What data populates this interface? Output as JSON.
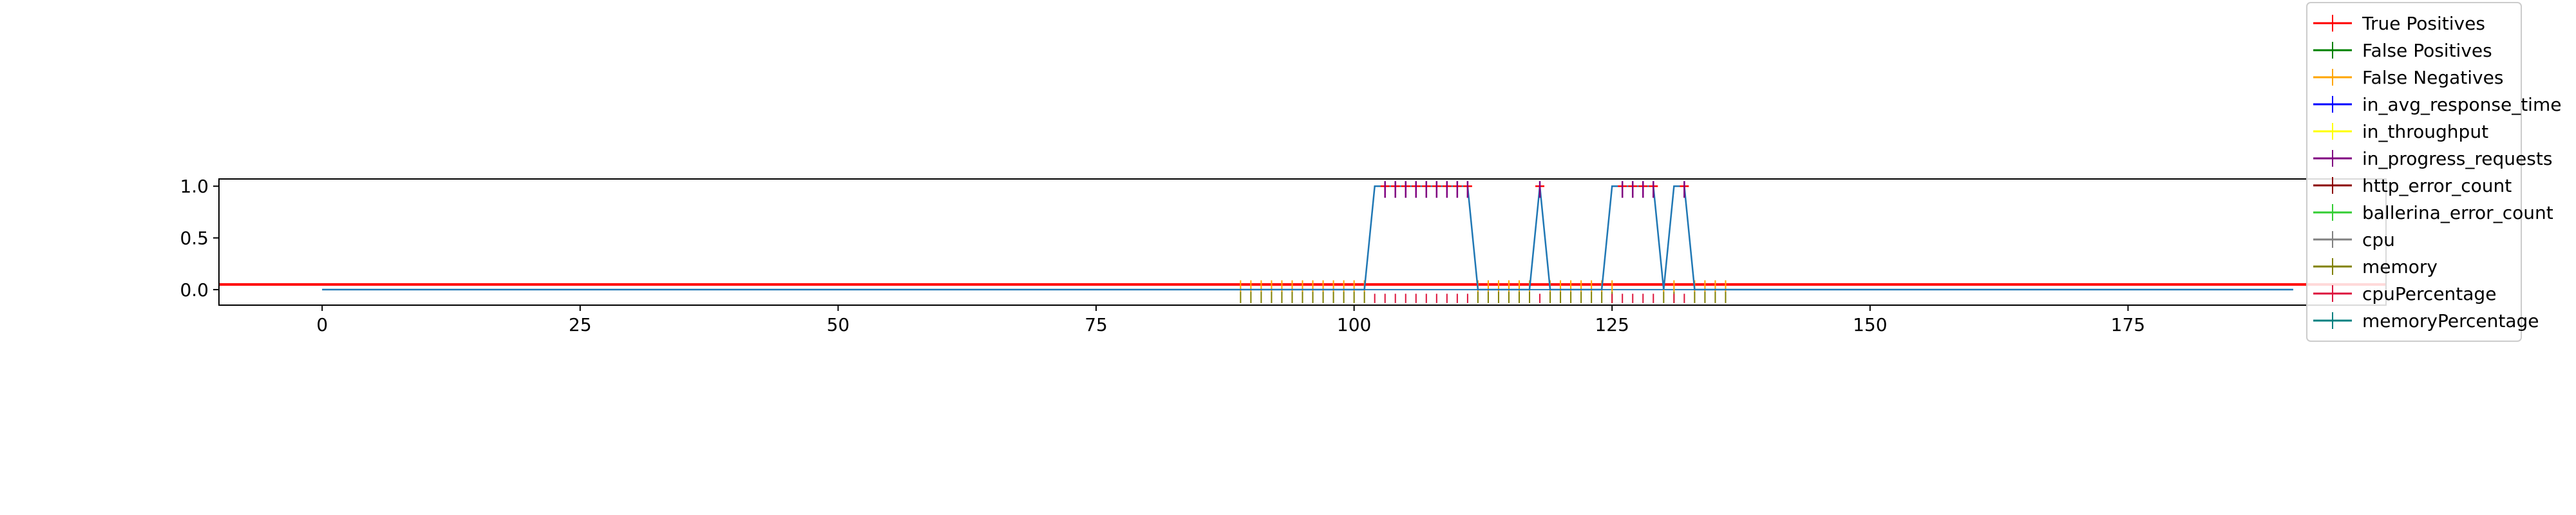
{
  "chart_data": {
    "type": "line",
    "title": "",
    "xlabel": "",
    "ylabel": "",
    "xlim": [
      -10,
      200
    ],
    "ylim": [
      -0.15,
      1.07
    ],
    "xticks": [
      0,
      25,
      50,
      75,
      100,
      125,
      150,
      175
    ],
    "yticks": [
      0.0,
      0.5,
      1.0
    ],
    "xtick_labels": [
      "0",
      "25",
      "50",
      "75",
      "100",
      "125",
      "150",
      "175"
    ],
    "ytick_labels": [
      "0.0",
      "0.5",
      "1.0"
    ],
    "grid": false,
    "legend_placement": "top-right, outside",
    "legend": [
      {
        "label": "True Positives",
        "color": "#ff0000"
      },
      {
        "label": "False Positives",
        "color": "#008000"
      },
      {
        "label": "False Negatives",
        "color": "#ffa500"
      },
      {
        "label": "in_avg_response_time",
        "color": "#0000ff"
      },
      {
        "label": "in_throughput",
        "color": "#ffff00"
      },
      {
        "label": "in_progress_requests",
        "color": "#800080"
      },
      {
        "label": "http_error_count",
        "color": "#8b0000"
      },
      {
        "label": "ballerina_error_count",
        "color": "#32cd32"
      },
      {
        "label": "cpu",
        "color": "#808080"
      },
      {
        "label": "memory",
        "color": "#808000"
      },
      {
        "label": "cpuPercentage",
        "color": "#dc143c"
      },
      {
        "label": "memoryPercentage",
        "color": "#008080"
      }
    ],
    "threshold": {
      "value": 0.05,
      "x_range": [
        -10,
        200
      ],
      "color": "#ff0000"
    },
    "baseline": {
      "value": 0.0,
      "x_range": [
        0,
        191
      ],
      "color": "#1f77b4"
    },
    "series": [
      {
        "color": "#1f77b4",
        "x": [
          0,
          101,
          102,
          111,
          112,
          117,
          118,
          119,
          124,
          125,
          129,
          130,
          131,
          132,
          133,
          191
        ],
        "y": [
          0,
          0,
          1,
          1,
          0,
          0,
          1,
          0,
          0,
          1,
          1,
          0,
          1,
          1,
          0,
          0
        ]
      }
    ],
    "markers": {
      "true_positives": [
        103,
        104,
        105,
        106,
        107,
        108,
        109,
        110,
        111,
        118,
        126,
        127,
        128,
        129,
        132
      ],
      "false_negatives": [
        89,
        90,
        91,
        92,
        93,
        94,
        95,
        96,
        97,
        98,
        99,
        100,
        101,
        112,
        113,
        114,
        115,
        116,
        117,
        119,
        120,
        121,
        122,
        123,
        124,
        125,
        130,
        131,
        133,
        134,
        135,
        136
      ],
      "negative_ticks": [
        102,
        103,
        104,
        105,
        106,
        107,
        108,
        109,
        110,
        111,
        118,
        125,
        126,
        127,
        128,
        129,
        131,
        132
      ]
    }
  }
}
